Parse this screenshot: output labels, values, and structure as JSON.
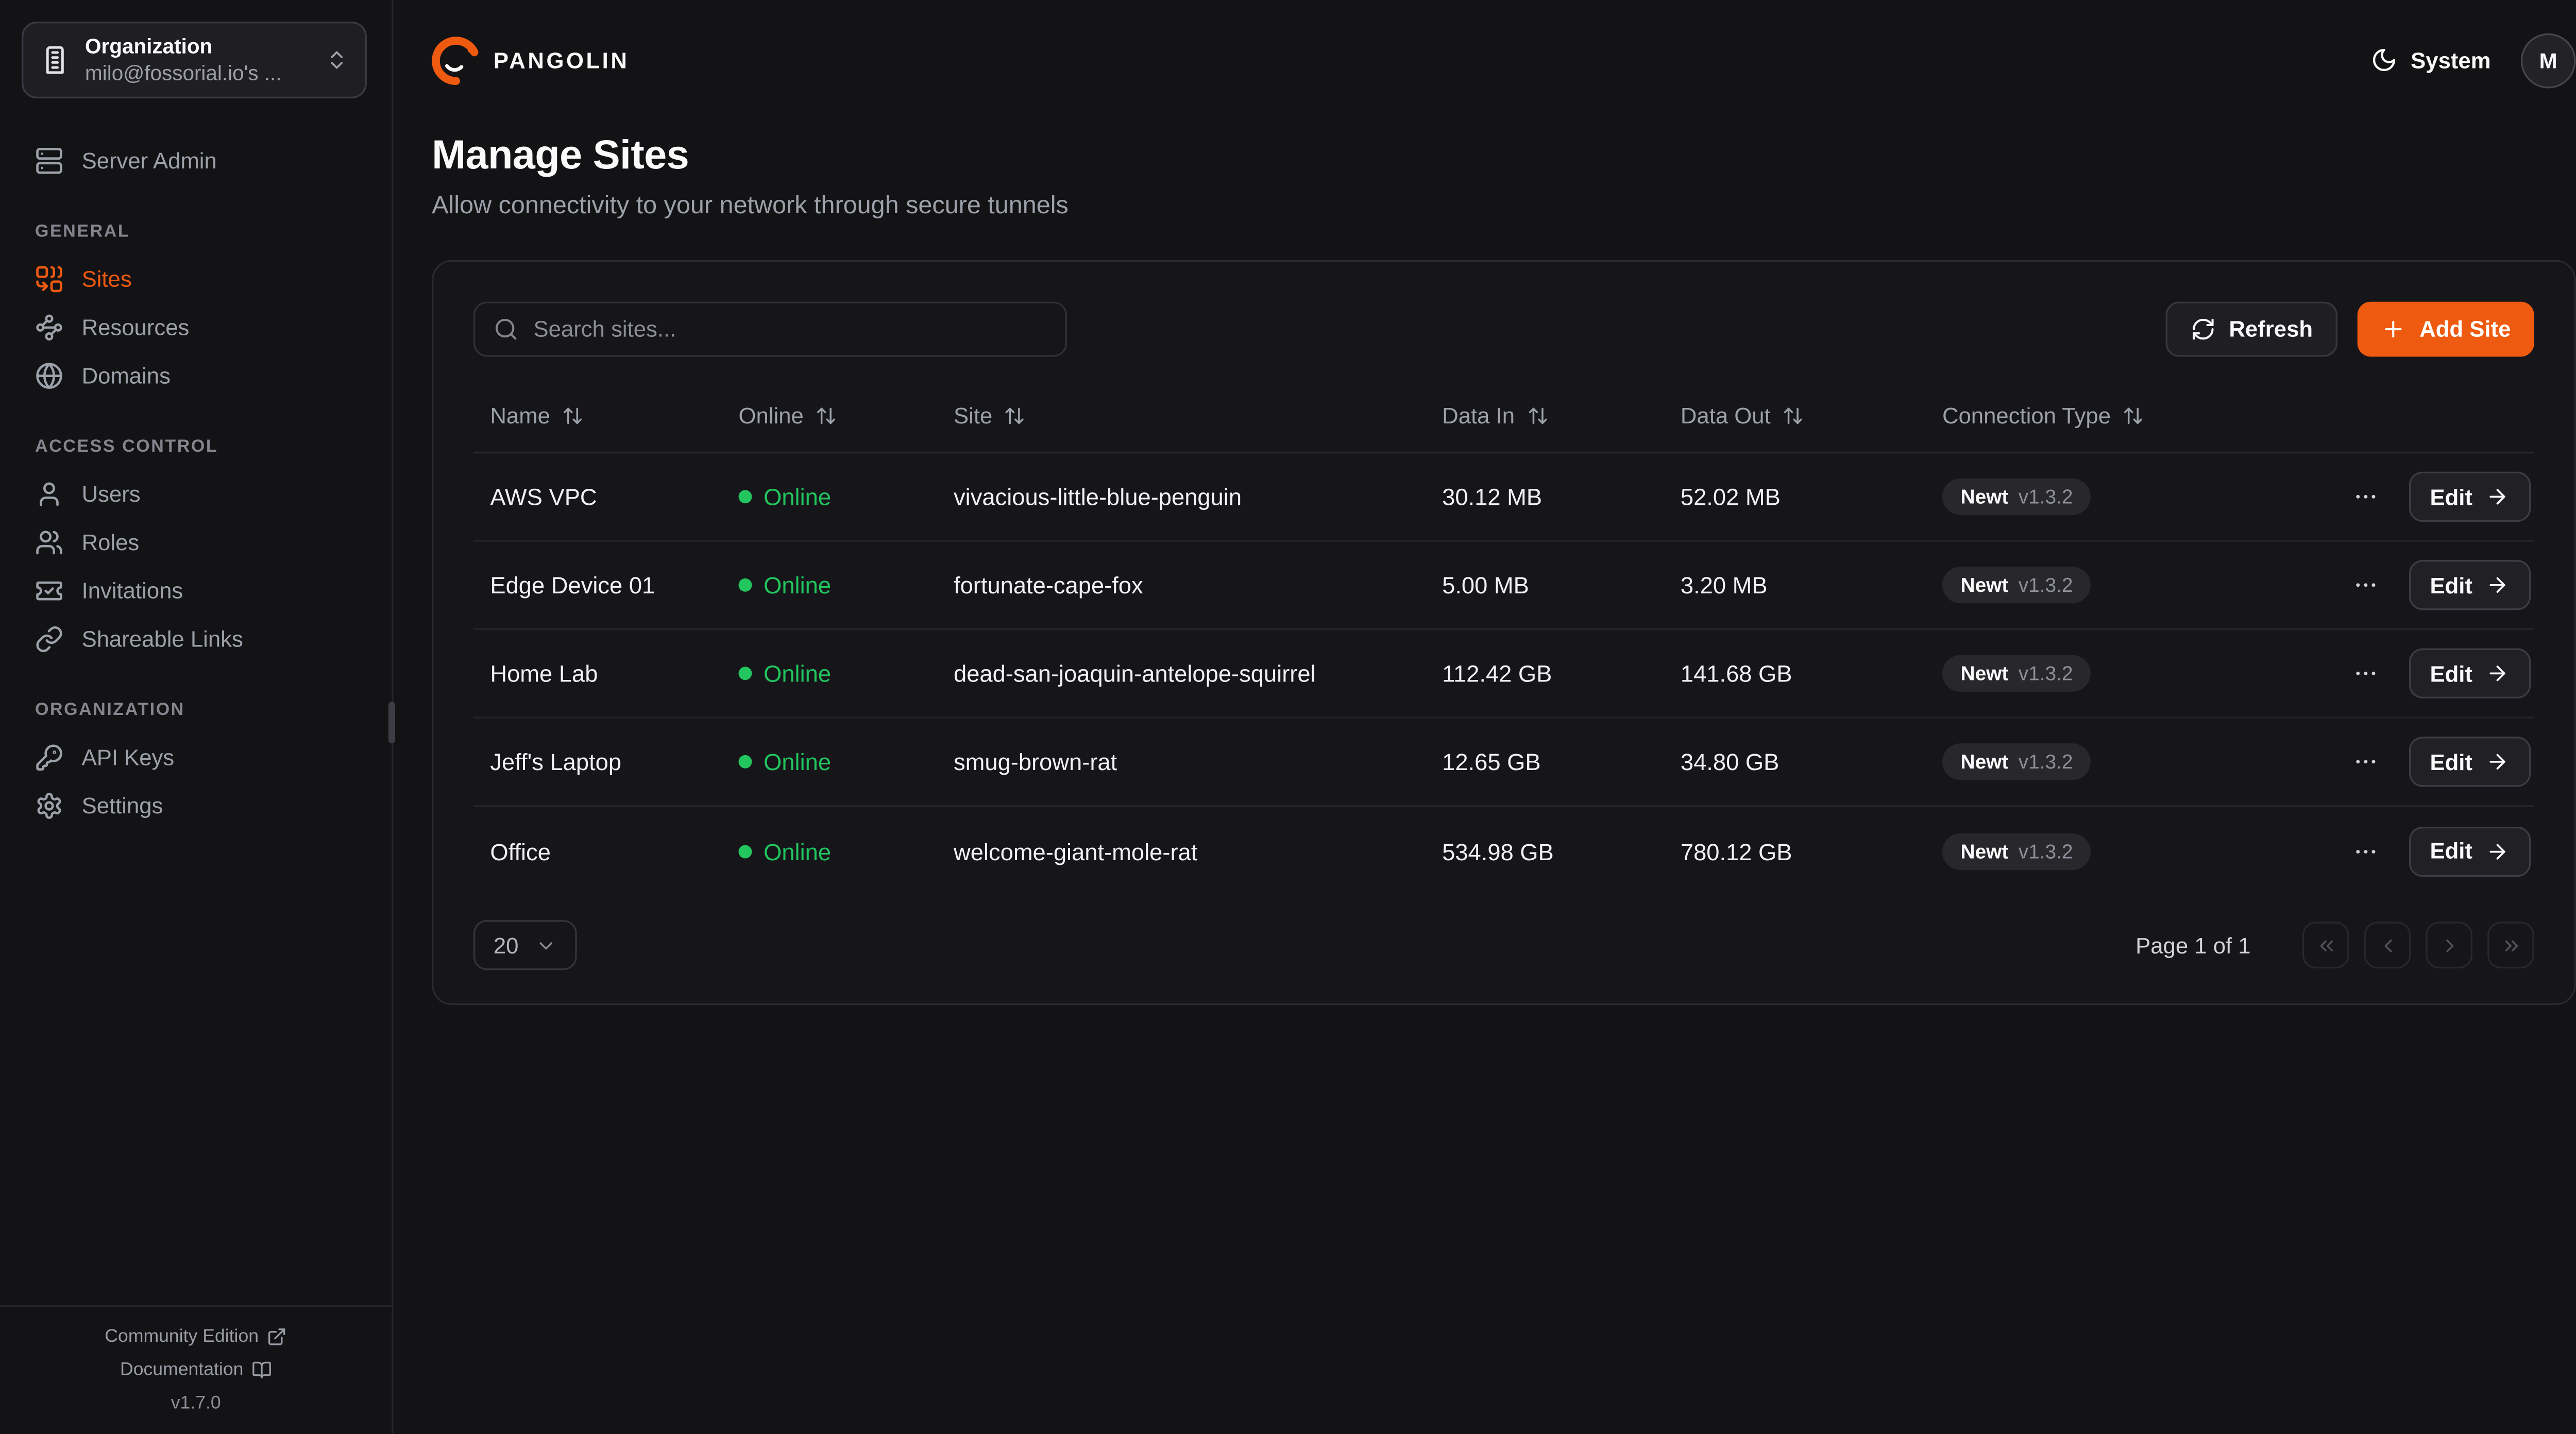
{
  "app": {
    "name": "PANGOLIN",
    "theme_label": "System",
    "avatar_initial": "M"
  },
  "org_switcher": {
    "label": "Organization",
    "value": "milo@fossorial.io's ..."
  },
  "sidebar": {
    "top_item": {
      "label": "Server Admin",
      "icon": "server-icon"
    },
    "sections": [
      {
        "label": "GENERAL",
        "items": [
          {
            "label": "Sites",
            "icon": "combine-icon",
            "active": true
          },
          {
            "label": "Resources",
            "icon": "waypoints-icon",
            "active": false
          },
          {
            "label": "Domains",
            "icon": "globe-icon",
            "active": false
          }
        ]
      },
      {
        "label": "ACCESS CONTROL",
        "items": [
          {
            "label": "Users",
            "icon": "user-icon",
            "active": false
          },
          {
            "label": "Roles",
            "icon": "users-icon",
            "active": false
          },
          {
            "label": "Invitations",
            "icon": "ticket-check-icon",
            "active": false
          },
          {
            "label": "Shareable Links",
            "icon": "link-icon",
            "active": false
          }
        ]
      },
      {
        "label": "ORGANIZATION",
        "items": [
          {
            "label": "API Keys",
            "icon": "key-icon",
            "active": false
          },
          {
            "label": "Settings",
            "icon": "settings-icon",
            "active": false
          }
        ]
      }
    ],
    "footer": {
      "community_label": "Community Edition",
      "documentation_label": "Documentation",
      "version": "v1.7.0"
    }
  },
  "page": {
    "title": "Manage Sites",
    "subtitle": "Allow connectivity to your network through secure tunnels"
  },
  "toolbar": {
    "search_placeholder": "Search sites...",
    "refresh_label": "Refresh",
    "add_site_label": "Add Site"
  },
  "table": {
    "columns": [
      {
        "label": "Name"
      },
      {
        "label": "Online"
      },
      {
        "label": "Site"
      },
      {
        "label": "Data In"
      },
      {
        "label": "Data Out"
      },
      {
        "label": "Connection Type"
      }
    ],
    "edit_label": "Edit",
    "rows": [
      {
        "name": "AWS VPC",
        "status": "Online",
        "site": "vivacious-little-blue-penguin",
        "data_in": "30.12 MB",
        "data_out": "52.02 MB",
        "connection": "Newt",
        "version": "v1.3.2"
      },
      {
        "name": "Edge Device 01",
        "status": "Online",
        "site": "fortunate-cape-fox",
        "data_in": "5.00 MB",
        "data_out": "3.20 MB",
        "connection": "Newt",
        "version": "v1.3.2"
      },
      {
        "name": "Home Lab",
        "status": "Online",
        "site": "dead-san-joaquin-antelope-squirrel",
        "data_in": "112.42 GB",
        "data_out": "141.68 GB",
        "connection": "Newt",
        "version": "v1.3.2"
      },
      {
        "name": "Jeff's Laptop",
        "status": "Online",
        "site": "smug-brown-rat",
        "data_in": "12.65 GB",
        "data_out": "34.80 GB",
        "connection": "Newt",
        "version": "v1.3.2"
      },
      {
        "name": "Office",
        "status": "Online",
        "site": "welcome-giant-mole-rat",
        "data_in": "534.98 GB",
        "data_out": "780.12 GB",
        "connection": "Newt",
        "version": "v1.3.2"
      }
    ]
  },
  "pagination": {
    "page_size": "20",
    "page_label": "Page 1 of 1"
  },
  "colors": {
    "accent": "#ee5a0f",
    "online_green": "#22c55e",
    "background": "#131316"
  }
}
